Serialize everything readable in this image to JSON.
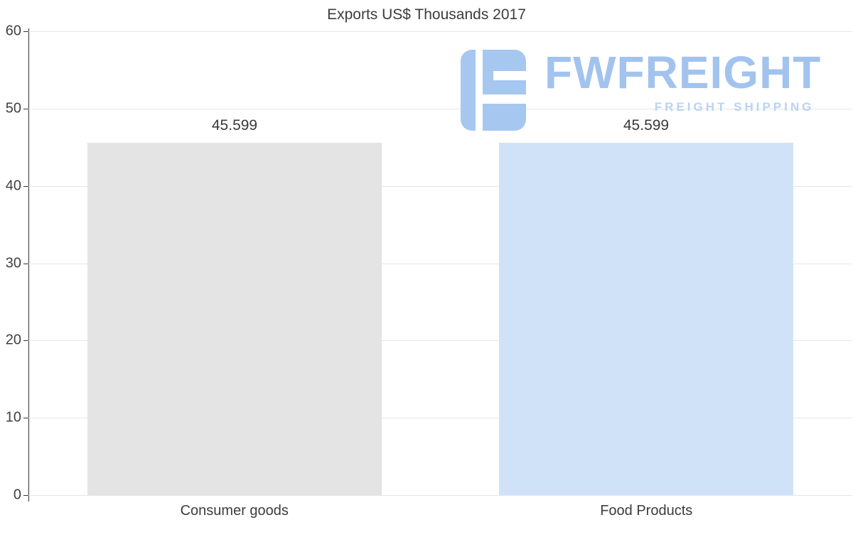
{
  "chart_data": {
    "type": "bar",
    "title": "Exports US$ Thousands 2017",
    "categories": [
      "Consumer goods",
      "Food Products"
    ],
    "values": [
      45.599,
      45.599
    ],
    "value_labels": [
      "45.599",
      "45.599"
    ],
    "series_colors": [
      "#e4e4e4",
      "#cfe2f8"
    ],
    "ylim": [
      0,
      60
    ],
    "yticks": [
      0,
      10,
      20,
      30,
      40,
      50,
      60
    ],
    "grid": true,
    "legend": "none",
    "xlabel": "",
    "ylabel": ""
  },
  "watermark": {
    "brand": "FWFREIGHT",
    "tagline": "FREIGHT SHIPPING",
    "brand_color": "#a2c3ee",
    "tagline_color": "#b9d3f3",
    "logo_color": "#a6c7f0"
  },
  "colors": {
    "background": "#ffffff",
    "gridline": "#e6e6e6",
    "axis": "#333333",
    "title_text": "#3c3c3c",
    "tick_text": "#404040",
    "value_text": "#3a3a3a"
  }
}
